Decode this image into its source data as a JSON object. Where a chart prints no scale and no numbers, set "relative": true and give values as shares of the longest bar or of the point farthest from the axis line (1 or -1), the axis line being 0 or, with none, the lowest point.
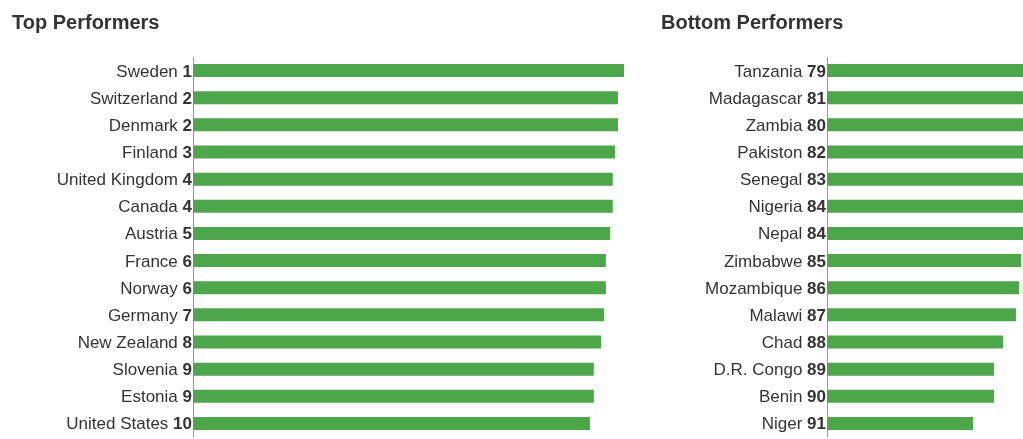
{
  "chart_data": [
    {
      "type": "bar",
      "title": "Top Performers",
      "orientation": "horizontal",
      "relative": true,
      "color": "#4ea64a",
      "categories": [
        "Sweden 1",
        "Switzerland 2",
        "Denmark 2",
        "Finland 3",
        "United Kingdom 4",
        "Canada 4",
        "Austria 5",
        "France 6",
        "Norway 6",
        "Germany 7",
        "New Zealand 8",
        "Slovenia 9",
        "Estonia 9",
        "United States 10"
      ],
      "values": [
        1,
        0.986,
        0.986,
        0.979,
        0.974,
        0.974,
        0.968,
        0.958,
        0.958,
        0.954,
        0.947,
        0.93,
        0.93,
        0.921
      ]
    },
    {
      "type": "bar",
      "title": "Bottom Performers",
      "orientation": "horizontal",
      "relative": true,
      "color": "#4ea64a",
      "categories": [
        "Tanzania 79",
        "Madagascar 81",
        "Zambia 80",
        "Pakiston 82",
        "Senegal 83",
        "Nigeria 84",
        "Nepal 84",
        "Zimbabwe 85",
        "Mozambique 86",
        "Malawi 87",
        "Chad 88",
        "D.R. Congo 89",
        "Benin 90",
        "Niger 91"
      ],
      "values": [
        1,
        1,
        1,
        1,
        1,
        1,
        1,
        0.99,
        0.98,
        0.964,
        0.898,
        0.852,
        0.852,
        0.745
      ]
    }
  ]
}
